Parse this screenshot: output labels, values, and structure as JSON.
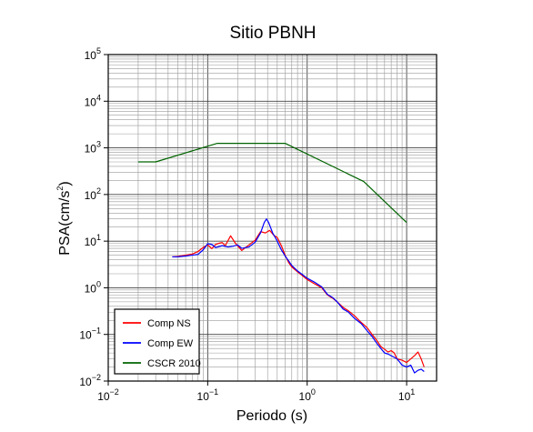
{
  "chart_data": {
    "type": "line",
    "title": "Sitio PBNH",
    "xlabel": "Periodo (s)",
    "ylabel_base": "PSA(cm/s",
    "ylabel_exp": "2",
    "ylabel_end": ")",
    "x_scale": "log",
    "y_scale": "log",
    "xlim": [
      0.01,
      20
    ],
    "ylim": [
      0.01,
      100000
    ],
    "grid": true,
    "legend_placement": "bottom-left",
    "x_ticks": [
      {
        "value": 0.01,
        "base": "10",
        "exp": "−2"
      },
      {
        "value": 0.1,
        "base": "10",
        "exp": "−1"
      },
      {
        "value": 1,
        "base": "10",
        "exp": "0"
      },
      {
        "value": 10,
        "base": "10",
        "exp": "1"
      }
    ],
    "y_ticks": [
      {
        "value": 0.01,
        "base": "10",
        "exp": "−2"
      },
      {
        "value": 0.1,
        "base": "10",
        "exp": "−1"
      },
      {
        "value": 1,
        "base": "10",
        "exp": "0"
      },
      {
        "value": 10,
        "base": "10",
        "exp": "1"
      },
      {
        "value": 100,
        "base": "10",
        "exp": "2"
      },
      {
        "value": 1000,
        "base": "10",
        "exp": "3"
      },
      {
        "value": 10000,
        "base": "10",
        "exp": "4"
      },
      {
        "value": 100000,
        "base": "10",
        "exp": "5"
      }
    ],
    "series": [
      {
        "name": "Comp NS",
        "color": "#ff0000",
        "points": [
          [
            0.044,
            4.6
          ],
          [
            0.05,
            4.7
          ],
          [
            0.06,
            5.0
          ],
          [
            0.07,
            5.3
          ],
          [
            0.08,
            6.0
          ],
          [
            0.09,
            7.3
          ],
          [
            0.1,
            8.3
          ],
          [
            0.11,
            6.9
          ],
          [
            0.12,
            8.5
          ],
          [
            0.13,
            9.0
          ],
          [
            0.14,
            9.3
          ],
          [
            0.15,
            8.0
          ],
          [
            0.17,
            13.0
          ],
          [
            0.19,
            9.0
          ],
          [
            0.22,
            6.3
          ],
          [
            0.26,
            8.3
          ],
          [
            0.3,
            10.5
          ],
          [
            0.34,
            16.0
          ],
          [
            0.38,
            15.0
          ],
          [
            0.42,
            17.0
          ],
          [
            0.46,
            13.5
          ],
          [
            0.5,
            12.0
          ],
          [
            0.55,
            8.0
          ],
          [
            0.6,
            5.0
          ],
          [
            0.65,
            3.5
          ],
          [
            0.7,
            2.8
          ],
          [
            0.8,
            2.2
          ],
          [
            0.9,
            1.8
          ],
          [
            1.0,
            1.5
          ],
          [
            1.2,
            1.2
          ],
          [
            1.4,
            1.0
          ],
          [
            1.6,
            0.7
          ],
          [
            1.8,
            0.6
          ],
          [
            2.0,
            0.5
          ],
          [
            2.3,
            0.38
          ],
          [
            2.6,
            0.32
          ],
          [
            3.0,
            0.25
          ],
          [
            3.5,
            0.18
          ],
          [
            4.0,
            0.14
          ],
          [
            4.5,
            0.1
          ],
          [
            5.0,
            0.075
          ],
          [
            5.5,
            0.055
          ],
          [
            6.0,
            0.048
          ],
          [
            6.5,
            0.042
          ],
          [
            7.0,
            0.045
          ],
          [
            7.5,
            0.04
          ],
          [
            8.0,
            0.03
          ],
          [
            9.0,
            0.028
          ],
          [
            10.0,
            0.025
          ],
          [
            11.0,
            0.03
          ],
          [
            12.0,
            0.035
          ],
          [
            13.0,
            0.042
          ],
          [
            14.0,
            0.03
          ],
          [
            15.0,
            0.02
          ]
        ]
      },
      {
        "name": "Comp EW",
        "color": "#0000ff",
        "points": [
          [
            0.044,
            4.6
          ],
          [
            0.05,
            4.6
          ],
          [
            0.06,
            4.8
          ],
          [
            0.07,
            5.0
          ],
          [
            0.08,
            5.2
          ],
          [
            0.09,
            6.5
          ],
          [
            0.1,
            8.8
          ],
          [
            0.11,
            8.5
          ],
          [
            0.12,
            7.3
          ],
          [
            0.14,
            8.0
          ],
          [
            0.16,
            7.5
          ],
          [
            0.18,
            7.8
          ],
          [
            0.2,
            8.3
          ],
          [
            0.22,
            7.0
          ],
          [
            0.26,
            7.5
          ],
          [
            0.3,
            9.5
          ],
          [
            0.34,
            15.0
          ],
          [
            0.37,
            25.0
          ],
          [
            0.39,
            30.0
          ],
          [
            0.41,
            25.0
          ],
          [
            0.45,
            15.0
          ],
          [
            0.5,
            10.0
          ],
          [
            0.55,
            6.5
          ],
          [
            0.6,
            4.8
          ],
          [
            0.65,
            3.8
          ],
          [
            0.7,
            3.0
          ],
          [
            0.8,
            2.3
          ],
          [
            0.9,
            1.9
          ],
          [
            1.0,
            1.6
          ],
          [
            1.2,
            1.3
          ],
          [
            1.4,
            1.05
          ],
          [
            1.6,
            0.72
          ],
          [
            1.8,
            0.62
          ],
          [
            2.0,
            0.5
          ],
          [
            2.3,
            0.35
          ],
          [
            2.6,
            0.3
          ],
          [
            3.0,
            0.22
          ],
          [
            3.5,
            0.17
          ],
          [
            4.0,
            0.12
          ],
          [
            4.5,
            0.09
          ],
          [
            5.0,
            0.065
          ],
          [
            5.5,
            0.05
          ],
          [
            6.0,
            0.04
          ],
          [
            6.5,
            0.038
          ],
          [
            7.0,
            0.035
          ],
          [
            8.0,
            0.03
          ],
          [
            9.0,
            0.022
          ],
          [
            10.0,
            0.02
          ],
          [
            11.0,
            0.022
          ],
          [
            12.0,
            0.015
          ],
          [
            13.0,
            0.017
          ],
          [
            14.0,
            0.018
          ],
          [
            15.0,
            0.016
          ]
        ]
      },
      {
        "name": "CSCR 2010",
        "color": "#006400",
        "points": [
          [
            0.02,
            500
          ],
          [
            0.03,
            500
          ],
          [
            0.125,
            1250
          ],
          [
            0.6,
            1250
          ],
          [
            3.7,
            190
          ],
          [
            10.0,
            25
          ]
        ]
      }
    ]
  }
}
